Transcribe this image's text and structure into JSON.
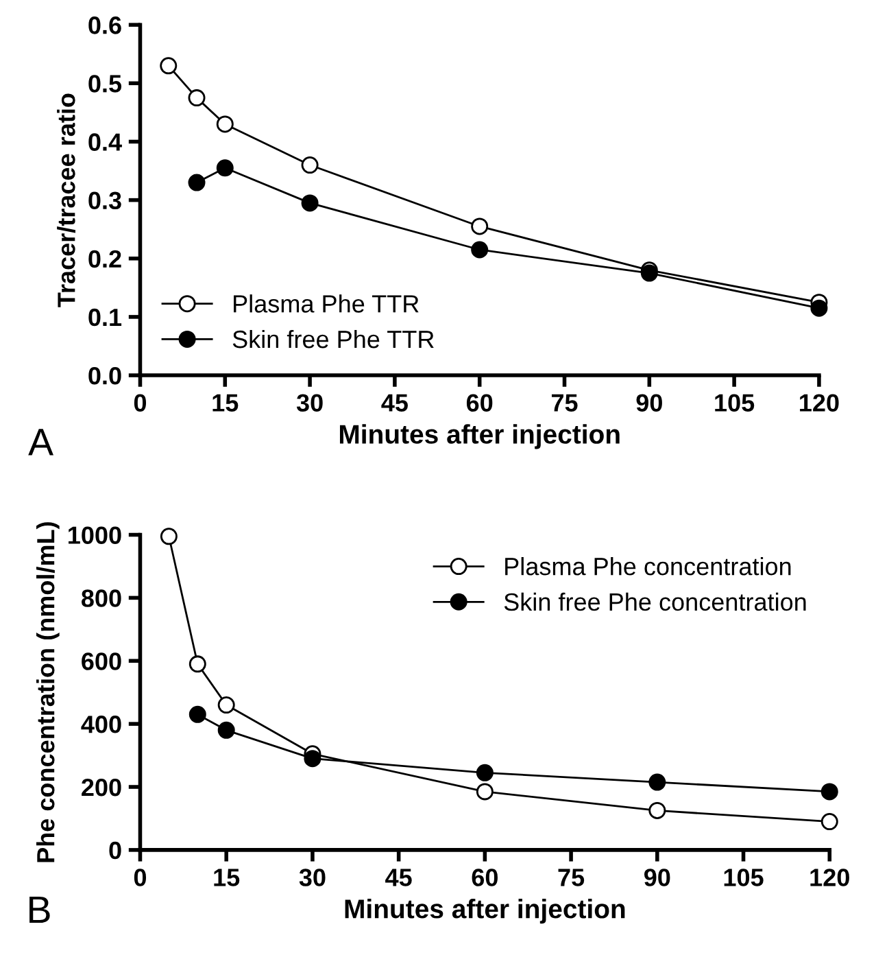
{
  "chart_data": [
    {
      "type": "line",
      "xlabel": "Minutes after injection",
      "ylabel": "Tracer/tracee ratio",
      "annotations": [
        "A"
      ],
      "marker": "circle",
      "legend": "bottom left",
      "grid": false,
      "xlim": [
        0,
        120
      ],
      "xticks": [
        0,
        15,
        30,
        45,
        60,
        75,
        90,
        105,
        120
      ],
      "ylim": [
        0.0,
        0.6
      ],
      "yticks": [
        {
          "value": 0,
          "label": "0.0"
        },
        0.1,
        0.2,
        0.3,
        0.4,
        0.5,
        0.6
      ],
      "series": [
        {
          "name": "Plasma Phe TTR",
          "color": "#ffffff",
          "x": [
            5,
            10,
            15,
            30,
            60,
            90,
            120
          ],
          "values": [
            0.53,
            0.475,
            0.43,
            0.36,
            0.255,
            0.18,
            0.125
          ]
        },
        {
          "name": "Skin free Phe TTR",
          "color": "#000000",
          "x": [
            10,
            15,
            30,
            60,
            90,
            120
          ],
          "values": [
            0.33,
            0.355,
            0.295,
            0.215,
            0.175,
            0.115
          ]
        }
      ]
    },
    {
      "type": "line",
      "xlabel": "Minutes after injection",
      "ylabel": "Phe concentration (nmol/mL)",
      "annotations": [
        "B"
      ],
      "marker": "circle",
      "legend": "top right",
      "grid": false,
      "xlim": [
        0,
        120
      ],
      "xticks": [
        0,
        15,
        30,
        45,
        60,
        75,
        90,
        105,
        120
      ],
      "ylim": [
        0,
        1000
      ],
      "yticks": [
        0,
        200,
        400,
        600,
        800,
        1000
      ],
      "series": [
        {
          "name": "Plasma Phe concentration",
          "color": "#ffffff",
          "x": [
            5,
            10,
            15,
            30,
            60,
            90,
            120
          ],
          "values": [
            995,
            590,
            460,
            305,
            185,
            125,
            90
          ]
        },
        {
          "name": "Skin free Phe concentration",
          "color": "#000000",
          "x": [
            10,
            15,
            30,
            60,
            90,
            120
          ],
          "values": [
            430,
            380,
            290,
            245,
            215,
            185
          ]
        }
      ]
    }
  ]
}
